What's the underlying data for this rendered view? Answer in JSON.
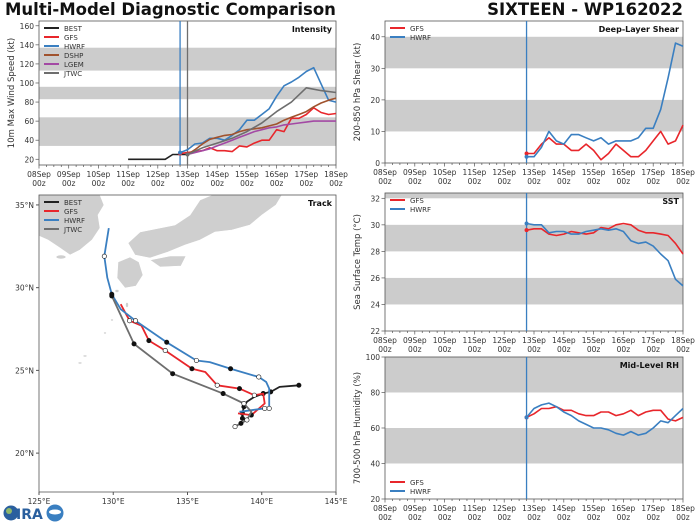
{
  "header": {
    "title": "Multi-Model Diagnostic Comparison",
    "storm": "SIXTEEN - WP162022"
  },
  "logo": {
    "text": "CIRA"
  },
  "colors": {
    "BEST": "#222222",
    "GFS": "#e8262b",
    "HWRF": "#3a7fc1",
    "DSHP": "#a0522d",
    "LGEM": "#a349a4",
    "JTWC": "#6e6e6e",
    "band": "#cccccc",
    "land": "#cfcfcf"
  },
  "chart_data": [
    {
      "id": "intensity",
      "type": "line",
      "title": "Intensity",
      "ylabel": "10m Max Wind Speed (kt)",
      "xlim": [
        "08Sep 00z",
        "18Sep 00z"
      ],
      "ylim": [
        14,
        165
      ],
      "yticks": [
        20,
        40,
        60,
        80,
        100,
        120,
        140,
        160
      ],
      "x_tick_labels": [
        "08Sep 00z",
        "09Sep 00z",
        "10Sep 00z",
        "11Sep 00z",
        "12Sep 00z",
        "13Sep 00z",
        "14Sep 00z",
        "15Sep 00z",
        "16Sep 00z",
        "17Sep 00z",
        "18Sep 00z"
      ],
      "bands": [
        [
          34,
          64
        ],
        [
          83,
          96
        ],
        [
          113,
          137
        ]
      ],
      "vlines": [
        {
          "time": "12Sep 18z",
          "color": "HWRF"
        },
        {
          "time": "13Sep 00z",
          "color": "JTWC"
        }
      ],
      "legend": "top-left",
      "series": [
        {
          "name": "BEST",
          "start": "11Sep 00z",
          "step_hours": 6,
          "values": [
            20,
            20,
            20,
            20,
            20,
            20,
            25,
            25,
            25
          ]
        },
        {
          "name": "GFS",
          "start": "12Sep 18z",
          "step_hours": 6,
          "values": [
            26,
            27,
            28,
            29,
            32,
            29,
            29,
            28,
            34,
            33,
            37,
            40,
            40,
            51,
            49,
            63,
            63,
            67,
            74,
            69,
            67,
            68
          ]
        },
        {
          "name": "HWRF",
          "start": "12Sep 18z",
          "step_hours": 6,
          "values": [
            27,
            30,
            36,
            37,
            42,
            42,
            40,
            45,
            51,
            61,
            61,
            67,
            73,
            86,
            97,
            101,
            106,
            112,
            116,
            99,
            82,
            80
          ]
        },
        {
          "name": "DSHP",
          "start": "13Sep 00z",
          "step_hours": 6,
          "values": [
            25,
            30,
            36,
            41,
            43,
            45,
            46,
            49,
            51,
            52,
            53,
            55,
            57,
            61,
            64,
            67,
            70,
            75,
            79,
            82,
            84
          ]
        },
        {
          "name": "LGEM",
          "start": "13Sep 00z",
          "step_hours": 6,
          "values": [
            25,
            27,
            29,
            31,
            34,
            37,
            40,
            43,
            46,
            49,
            51,
            53,
            54,
            56,
            57,
            58,
            59,
            60,
            60,
            60,
            60
          ]
        },
        {
          "name": "JTWC",
          "start": "13Sep 00z",
          "step_hours": 12,
          "values": [
            25,
            32,
            37,
            42,
            49,
            58,
            70,
            80,
            95,
            92,
            90
          ]
        }
      ]
    },
    {
      "id": "shear",
      "type": "line",
      "title": "Deep-Layer Shear",
      "ylabel": "200-850 hPa Shear (kt)",
      "xlim": [
        "08Sep 00z",
        "18Sep 00z"
      ],
      "ylim": [
        0,
        45
      ],
      "yticks": [
        0,
        10,
        20,
        30,
        40
      ],
      "x_tick_labels": [
        "08Sep 00z",
        "09Sep 00z",
        "10Sep 00z",
        "11Sep 00z",
        "12Sep 00z",
        "13Sep 00z",
        "14Sep 00z",
        "15Sep 00z",
        "16Sep 00z",
        "17Sep 00z",
        "18Sep 00z"
      ],
      "bands": [
        [
          10,
          20
        ],
        [
          30,
          40
        ]
      ],
      "vlines": [
        {
          "time": "12Sep 18z",
          "color": "HWRF"
        }
      ],
      "legend": "top-left",
      "series": [
        {
          "name": "GFS",
          "start": "12Sep 18z",
          "step_hours": 6,
          "values": [
            3,
            3,
            6,
            8,
            6,
            6,
            4,
            4,
            6,
            4,
            1,
            3,
            6,
            4,
            2,
            2,
            4,
            7,
            10,
            6,
            7,
            12
          ]
        },
        {
          "name": "HWRF",
          "start": "12Sep 18z",
          "step_hours": 6,
          "values": [
            2,
            2,
            5,
            10,
            7,
            6,
            9,
            9,
            8,
            7,
            8,
            6,
            7,
            7,
            7,
            8,
            11,
            11,
            17,
            27,
            38,
            37
          ]
        }
      ]
    },
    {
      "id": "sst",
      "type": "line",
      "title": "SST",
      "ylabel": "Sea Surface Temp (°C)",
      "xlim": [
        "08Sep 00z",
        "18Sep 00z"
      ],
      "ylim": [
        22,
        32.4
      ],
      "yticks": [
        22,
        24,
        26,
        28,
        30,
        32
      ],
      "x_tick_labels": [
        "08Sep 00z",
        "09Sep 00z",
        "10Sep 00z",
        "11Sep 00z",
        "12Sep 00z",
        "13Sep 00z",
        "14Sep 00z",
        "15Sep 00z",
        "16Sep 00z",
        "17Sep 00z",
        "18Sep 00z"
      ],
      "bands": [
        [
          24,
          26
        ],
        [
          28,
          30
        ],
        [
          32,
          34
        ]
      ],
      "vlines": [
        {
          "time": "12Sep 18z",
          "color": "HWRF"
        }
      ],
      "legend": "top-left",
      "series": [
        {
          "name": "GFS",
          "start": "12Sep 18z",
          "step_hours": 6,
          "values": [
            29.6,
            29.7,
            29.7,
            29.3,
            29.2,
            29.3,
            29.5,
            29.4,
            29.3,
            29.4,
            29.8,
            29.7,
            30.0,
            30.1,
            30.0,
            29.6,
            29.4,
            29.4,
            29.3,
            29.2,
            28.6,
            27.8
          ]
        },
        {
          "name": "HWRF",
          "start": "12Sep 18z",
          "step_hours": 6,
          "values": [
            30.1,
            30.0,
            30.0,
            29.4,
            29.5,
            29.5,
            29.3,
            29.3,
            29.5,
            29.6,
            29.7,
            29.6,
            29.7,
            29.5,
            28.8,
            28.6,
            28.7,
            28.4,
            27.8,
            27.3,
            25.9,
            25.4
          ]
        }
      ]
    },
    {
      "id": "rh",
      "type": "line",
      "title": "Mid-Level RH",
      "ylabel": "700-500 hPa Humidity (%)",
      "xlim": [
        "08Sep 00z",
        "18Sep 00z"
      ],
      "ylim": [
        20,
        100
      ],
      "yticks": [
        20,
        40,
        60,
        80,
        100
      ],
      "x_tick_labels": [
        "08Sep 00z",
        "09Sep 00z",
        "10Sep 00z",
        "11Sep 00z",
        "12Sep 00z",
        "13Sep 00z",
        "14Sep 00z",
        "15Sep 00z",
        "16Sep 00z",
        "17Sep 00z",
        "18Sep 00z"
      ],
      "bands": [
        [
          40,
          60
        ],
        [
          80,
          100
        ]
      ],
      "vlines": [
        {
          "time": "12Sep 18z",
          "color": "HWRF"
        }
      ],
      "legend": "bottom-left",
      "series": [
        {
          "name": "GFS",
          "start": "12Sep 18z",
          "step_hours": 6,
          "values": [
            66,
            68,
            71,
            71,
            72,
            70,
            70,
            68,
            67,
            67,
            69,
            69,
            67,
            68,
            70,
            67,
            69,
            70,
            70,
            65,
            64,
            66
          ]
        },
        {
          "name": "HWRF",
          "start": "12Sep 18z",
          "step_hours": 6,
          "values": [
            66,
            71,
            73,
            74,
            72,
            69,
            67,
            64,
            62,
            60,
            60,
            59,
            57,
            56,
            58,
            56,
            57,
            60,
            64,
            63,
            67,
            71
          ]
        }
      ]
    },
    {
      "id": "track",
      "type": "line",
      "title": "Track",
      "xlim": [
        125,
        145
      ],
      "ylim": [
        17.65,
        35.6
      ],
      "x_tick_labels": [
        [
          125,
          "125°E"
        ],
        [
          130,
          "130°E"
        ],
        [
          135,
          "135°E"
        ],
        [
          140,
          "140°E"
        ],
        [
          145,
          "145°E"
        ]
      ],
      "y_tick_labels": [
        [
          20,
          "20°N"
        ],
        [
          25,
          "25°N"
        ],
        [
          30,
          "30°N"
        ],
        [
          35,
          "35°N"
        ]
      ],
      "legend": "top-left",
      "series": [
        {
          "name": "BEST",
          "points": [
            [
              142.5,
              24.1,
              "filled"
            ],
            [
              141.2,
              24.0,
              ""
            ],
            [
              140.6,
              23.7,
              "filled"
            ],
            [
              140.1,
              23.6,
              "filled"
            ],
            [
              139.5,
              23.4,
              ""
            ],
            [
              139.0,
              23.1,
              ""
            ],
            [
              138.8,
              22.8,
              "filled"
            ],
            [
              138.7,
              22.4,
              "filled"
            ],
            [
              138.7,
              22.1,
              "filled"
            ]
          ]
        },
        {
          "name": "GFS",
          "points": [
            [
              138.4,
              22.4,
              ""
            ],
            [
              139.3,
              22.3,
              "filled"
            ],
            [
              140.2,
              23.0,
              ""
            ],
            [
              140.1,
              23.6,
              ""
            ],
            [
              139.5,
              23.5,
              "open"
            ],
            [
              138.5,
              23.9,
              "filled"
            ],
            [
              137.0,
              24.1,
              "open"
            ],
            [
              136.2,
              24.9,
              ""
            ],
            [
              135.3,
              25.1,
              "filled"
            ],
            [
              133.5,
              26.2,
              "open"
            ],
            [
              132.4,
              26.8,
              "filled"
            ],
            [
              131.9,
              27.7,
              ""
            ],
            [
              131.1,
              28.0,
              "open"
            ],
            [
              130.5,
              29.0,
              ""
            ]
          ]
        },
        {
          "name": "HWRF",
          "points": [
            [
              138.5,
              22.5,
              ""
            ],
            [
              140.2,
              22.7,
              "open"
            ],
            [
              140.5,
              22.7,
              "open"
            ],
            [
              140.5,
              23.9,
              ""
            ],
            [
              140.3,
              24.3,
              ""
            ],
            [
              139.8,
              24.6,
              "open"
            ],
            [
              137.9,
              25.1,
              "filled"
            ],
            [
              136.5,
              25.5,
              ""
            ],
            [
              135.6,
              25.6,
              "open"
            ],
            [
              133.6,
              26.7,
              "filled"
            ],
            [
              131.5,
              28.0,
              "open"
            ],
            [
              130.5,
              28.7,
              ""
            ],
            [
              129.9,
              29.6,
              "filled"
            ],
            [
              129.6,
              30.6,
              ""
            ],
            [
              129.4,
              31.9,
              "open"
            ],
            [
              129.7,
              33.6,
              ""
            ]
          ]
        },
        {
          "name": "JTWC",
          "points": [
            [
              138.2,
              21.6,
              "open"
            ],
            [
              138.6,
              21.8,
              "filled"
            ],
            [
              139.0,
              22.0,
              "open"
            ],
            [
              139.3,
              22.5,
              ""
            ],
            [
              138.8,
              23.0,
              "open"
            ],
            [
              137.4,
              23.6,
              "filled"
            ],
            [
              134.0,
              24.8,
              "filled"
            ],
            [
              131.4,
              26.6,
              "filled"
            ],
            [
              129.9,
              29.5,
              "filled"
            ]
          ]
        }
      ]
    }
  ]
}
